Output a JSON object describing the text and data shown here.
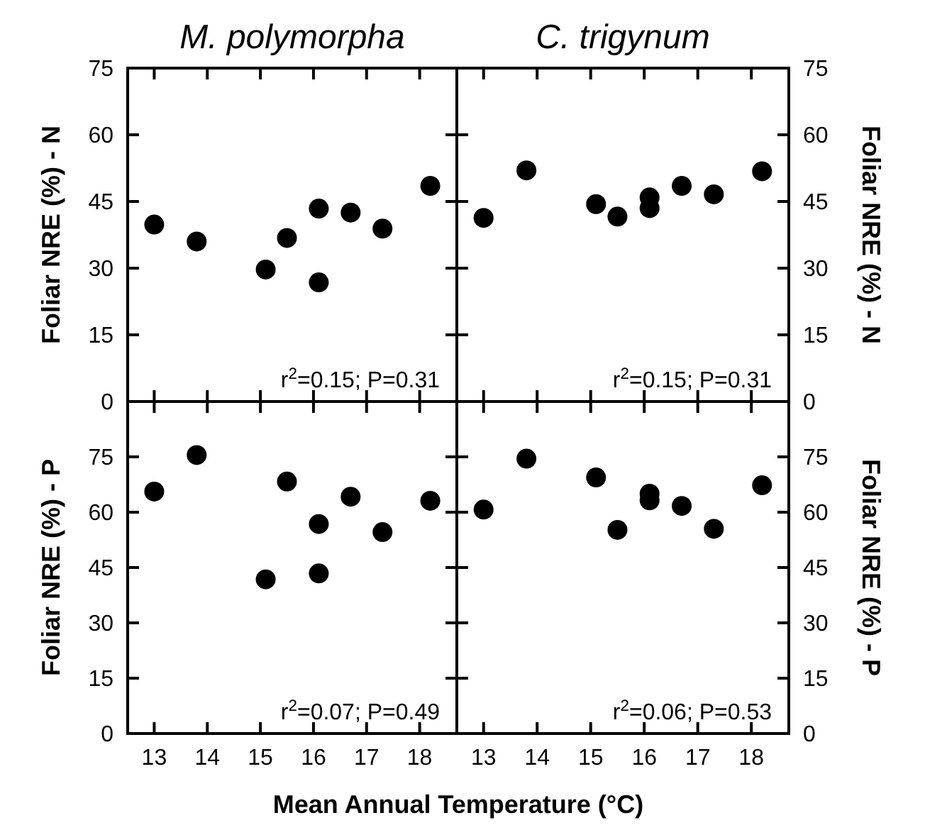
{
  "chart_data": [
    {
      "type": "scatter",
      "title": "M. polymorpha",
      "ylabel": "Foliar NRE (%) - N",
      "x": [
        13.0,
        13.8,
        15.1,
        15.5,
        16.1,
        16.1,
        16.7,
        17.3,
        18.2
      ],
      "values": [
        39.8,
        36.0,
        29.7,
        36.8,
        43.4,
        26.8,
        42.5,
        38.9,
        48.5
      ],
      "color": "#000000",
      "marker": "circle",
      "xlim": [
        12.5,
        18.7
      ],
      "xticks": [
        {
          "value": 13,
          "label": null
        },
        {
          "value": 14,
          "label": null
        },
        {
          "value": 15,
          "label": null
        },
        {
          "value": 16,
          "label": null
        },
        {
          "value": 17,
          "label": null
        },
        {
          "value": 18,
          "label": null
        }
      ],
      "ylim": [
        0,
        75
      ],
      "yticks": [
        0,
        15,
        30,
        45,
        60,
        75
      ],
      "tick_labels": "y",
      "annotations": [
        "r$^{2}$=0.15; P=0.31"
      ]
    },
    {
      "type": "scatter",
      "title": "C. trigynum",
      "ylabel": "Foliar NRE (%) - N",
      "x": [
        13.0,
        13.8,
        15.1,
        15.5,
        16.1,
        16.1,
        16.7,
        17.3,
        18.2
      ],
      "values": [
        41.3,
        52.0,
        44.4,
        41.6,
        45.9,
        43.5,
        48.5,
        46.6,
        51.8
      ],
      "color": "#000000",
      "marker": "circle",
      "xlim": [
        12.5,
        18.7
      ],
      "xticks": [
        {
          "value": 13,
          "label": null
        },
        {
          "value": 14,
          "label": null
        },
        {
          "value": 15,
          "label": null
        },
        {
          "value": 16,
          "label": null
        },
        {
          "value": 17,
          "label": null
        },
        {
          "value": 18,
          "label": null
        }
      ],
      "ylim": [
        0,
        75
      ],
      "yticks": [
        0,
        15,
        30,
        45,
        60,
        75
      ],
      "tick_labels": "y",
      "annotations": [
        "r$^{2}$=0.15; P=0.31"
      ]
    },
    {
      "type": "scatter",
      "ylabel": "Foliar NRE (%) - P",
      "xlabel": "Mean Annual Temperature (°C)",
      "x": [
        13.0,
        13.8,
        15.1,
        15.5,
        16.1,
        16.1,
        16.7,
        17.3,
        18.2
      ],
      "values": [
        65.6,
        75.5,
        41.8,
        68.3,
        56.8,
        43.4,
        64.2,
        54.6,
        63.1
      ],
      "color": "#000000",
      "marker": "circle",
      "xlim": [
        12.5,
        18.7
      ],
      "xticks": [
        13,
        14,
        15,
        16,
        17,
        18
      ],
      "ylim": [
        0,
        90
      ],
      "yticks": [
        0,
        15,
        30,
        45,
        60,
        75
      ],
      "annotations": [
        "r$^{2}$=0.07; P=0.49"
      ]
    },
    {
      "type": "scatter",
      "ylabel": "Foliar NRE (%) - P",
      "x": [
        13.0,
        13.8,
        15.1,
        15.5,
        16.1,
        16.1,
        16.7,
        17.3,
        18.2
      ],
      "values": [
        60.7,
        74.5,
        69.4,
        55.2,
        65.0,
        63.2,
        61.7,
        55.5,
        67.3
      ],
      "color": "#000000",
      "marker": "circle",
      "xlim": [
        12.5,
        18.7
      ],
      "xticks": [
        13,
        14,
        15,
        16,
        17,
        18
      ],
      "ylim": [
        0,
        90
      ],
      "yticks": [
        0,
        15,
        30,
        45,
        60,
        75
      ],
      "annotations": [
        "r$^{2}$=0.06; P=0.53"
      ]
    }
  ]
}
